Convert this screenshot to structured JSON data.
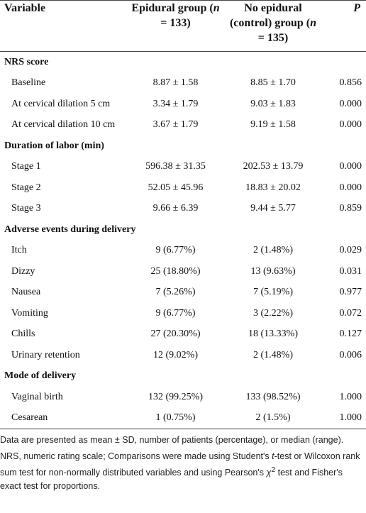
{
  "header": {
    "variable": "Variable",
    "epidural": [
      "Epidural group (",
      "n",
      " = 133)"
    ],
    "control": [
      "No epidural (control) group (",
      "n",
      " = 135)"
    ],
    "p": "P"
  },
  "sections": [
    {
      "title": "NRS score",
      "rows": [
        [
          "Baseline",
          "8.87 ± 1.58",
          "8.85 ± 1.70",
          "0.856"
        ],
        [
          "At cervical dilation 5 cm",
          "3.34 ± 1.79",
          "9.03 ± 1.83",
          "0.000"
        ],
        [
          "At cervical dilation 10 cm",
          "3.67 ± 1.79",
          "9.19 ± 1.58",
          "0.000"
        ]
      ]
    },
    {
      "title": "Duration of labor (min)",
      "rows": [
        [
          "Stage 1",
          "596.38 ± 31.35",
          "202.53 ± 13.79",
          "0.000"
        ],
        [
          "Stage 2",
          "52.05 ± 45.96",
          "18.83 ± 20.02",
          "0.000"
        ],
        [
          "Stage 3",
          "9.66 ± 6.39",
          "9.44 ± 5.77",
          "0.859"
        ]
      ]
    },
    {
      "title": "Adverse events during delivery",
      "rows": [
        [
          "Itch",
          "9 (6.77%)",
          "2 (1.48%)",
          "0.029"
        ],
        [
          "Dizzy",
          "25 (18.80%)",
          "13 (9.63%)",
          "0.031"
        ],
        [
          "Nausea",
          "7 (5.26%)",
          "7 (5.19%)",
          "0.977"
        ],
        [
          "Vomiting",
          "9 (6.77%)",
          "3 (2.22%)",
          "0.072"
        ],
        [
          "Chills",
          "27 (20.30%)",
          "18 (13.33%)",
          "0.127"
        ],
        [
          "Urinary retention",
          "12 (9.02%)",
          "2 (1.48%)",
          "0.006"
        ]
      ]
    },
    {
      "title": "Mode of delivery",
      "rows": [
        [
          "Vaginal birth",
          "132 (99.25%)",
          "133 (98.52%)",
          "1.000"
        ],
        [
          "Cesarean",
          "1 (0.75%)",
          "2 (1.5%)",
          "1.000"
        ]
      ]
    }
  ],
  "footnotes": {
    "first": "Data are presented as mean ± SD, number of patients (percentage), or median (range).",
    "second": [
      "NRS, numeric rating scale; Comparisons were made using Student's ",
      "t",
      "-test or Wilcoxon rank sum test for non-normally distributed variables and using Pearson's ",
      "χ",
      "2",
      " test and Fisher's exact test for proportions."
    ]
  }
}
